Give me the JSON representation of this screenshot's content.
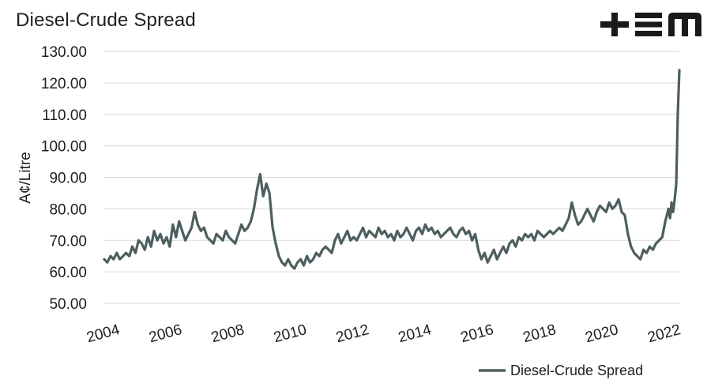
{
  "chart_data": {
    "type": "line",
    "title": "Diesel-Crude Spread",
    "ylabel": "A¢/Litre",
    "xlabel": "",
    "ylim": [
      50,
      130
    ],
    "yticks": [
      "50.00",
      "60.00",
      "70.00",
      "80.00",
      "90.00",
      "100.00",
      "110.00",
      "120.00",
      "130.00"
    ],
    "xlim": [
      2004.0,
      2022.45
    ],
    "xticks": [
      "2004",
      "2006",
      "2008",
      "2010",
      "2012",
      "2014",
      "2016",
      "2018",
      "2020",
      "2022"
    ],
    "grid": "horizontal",
    "legend_position": "bottom-right",
    "series_color": "#4d5e5e",
    "series": [
      {
        "name": "Diesel-Crude Spread",
        "x": [
          2004.0,
          2004.1,
          2004.2,
          2004.3,
          2004.4,
          2004.5,
          2004.6,
          2004.7,
          2004.8,
          2004.9,
          2005.0,
          2005.1,
          2005.2,
          2005.3,
          2005.4,
          2005.5,
          2005.6,
          2005.7,
          2005.8,
          2005.9,
          2006.0,
          2006.1,
          2006.2,
          2006.3,
          2006.4,
          2006.5,
          2006.6,
          2006.7,
          2006.8,
          2006.9,
          2007.0,
          2007.1,
          2007.2,
          2007.3,
          2007.4,
          2007.5,
          2007.6,
          2007.7,
          2007.8,
          2007.9,
          2008.0,
          2008.1,
          2008.2,
          2008.3,
          2008.4,
          2008.5,
          2008.6,
          2008.7,
          2008.8,
          2008.9,
          2009.0,
          2009.1,
          2009.2,
          2009.3,
          2009.4,
          2009.5,
          2009.6,
          2009.7,
          2009.8,
          2009.9,
          2010.0,
          2010.1,
          2010.2,
          2010.3,
          2010.4,
          2010.5,
          2010.6,
          2010.7,
          2010.8,
          2010.9,
          2011.0,
          2011.1,
          2011.2,
          2011.3,
          2011.4,
          2011.5,
          2011.6,
          2011.7,
          2011.8,
          2011.9,
          2012.0,
          2012.1,
          2012.2,
          2012.3,
          2012.4,
          2012.5,
          2012.6,
          2012.7,
          2012.8,
          2012.9,
          2013.0,
          2013.1,
          2013.2,
          2013.3,
          2013.4,
          2013.5,
          2013.6,
          2013.7,
          2013.8,
          2013.9,
          2014.0,
          2014.1,
          2014.2,
          2014.3,
          2014.4,
          2014.5,
          2014.6,
          2014.7,
          2014.8,
          2014.9,
          2015.0,
          2015.1,
          2015.2,
          2015.3,
          2015.4,
          2015.5,
          2015.6,
          2015.7,
          2015.8,
          2015.9,
          2016.0,
          2016.1,
          2016.2,
          2016.3,
          2016.4,
          2016.5,
          2016.6,
          2016.7,
          2016.8,
          2016.9,
          2017.0,
          2017.1,
          2017.2,
          2017.3,
          2017.4,
          2017.5,
          2017.6,
          2017.7,
          2017.8,
          2017.9,
          2018.0,
          2018.1,
          2018.2,
          2018.3,
          2018.4,
          2018.5,
          2018.6,
          2018.7,
          2018.8,
          2018.9,
          2019.0,
          2019.1,
          2019.2,
          2019.3,
          2019.4,
          2019.5,
          2019.6,
          2019.7,
          2019.8,
          2019.9,
          2020.0,
          2020.1,
          2020.2,
          2020.3,
          2020.4,
          2020.5,
          2020.6,
          2020.7,
          2020.8,
          2020.9,
          2021.0,
          2021.1,
          2021.2,
          2021.3,
          2021.4,
          2021.5,
          2021.6,
          2021.7,
          2021.8,
          2021.9,
          2022.0,
          2022.05,
          2022.1,
          2022.15,
          2022.2,
          2022.25,
          2022.3,
          2022.35,
          2022.4,
          2022.45
        ],
        "values": [
          64,
          63,
          65,
          64,
          66,
          64,
          65,
          66,
          65,
          68,
          66,
          70,
          69,
          67,
          71,
          68,
          73,
          70,
          72,
          69,
          71,
          68,
          75,
          71,
          76,
          73,
          70,
          72,
          74,
          79,
          75,
          73,
          74,
          71,
          70,
          69,
          72,
          71,
          70,
          73,
          71,
          70,
          69,
          72,
          75,
          73,
          74,
          76,
          80,
          86,
          91,
          84,
          88,
          85,
          74,
          69,
          65,
          63,
          62,
          64,
          62,
          61,
          63,
          64,
          62,
          65,
          63,
          64,
          66,
          65,
          67,
          68,
          67,
          66,
          70,
          72,
          69,
          71,
          73,
          70,
          71,
          70,
          72,
          74,
          71,
          73,
          72,
          71,
          74,
          72,
          73,
          71,
          72,
          70,
          73,
          71,
          72,
          74,
          72,
          70,
          73,
          74,
          72,
          75,
          73,
          74,
          72,
          73,
          71,
          72,
          73,
          74,
          72,
          71,
          73,
          74,
          72,
          73,
          70,
          72,
          67,
          64,
          66,
          63,
          65,
          67,
          64,
          66,
          68,
          66,
          69,
          70,
          68,
          71,
          70,
          72,
          71,
          72,
          70,
          73,
          72,
          71,
          72,
          73,
          72,
          73,
          74,
          73,
          75,
          77,
          82,
          78,
          75,
          76,
          78,
          80,
          78,
          76,
          79,
          81,
          80,
          79,
          82,
          80,
          81,
          83,
          79,
          78,
          72,
          68,
          66,
          65,
          64,
          67,
          66,
          68,
          67,
          69,
          70,
          71,
          76,
          78,
          80,
          77,
          82,
          79,
          83,
          88,
          110,
          124
        ]
      }
    ]
  },
  "logo": {
    "name": "tem-logo",
    "text": "+EM",
    "color": "#1a1a1a"
  }
}
